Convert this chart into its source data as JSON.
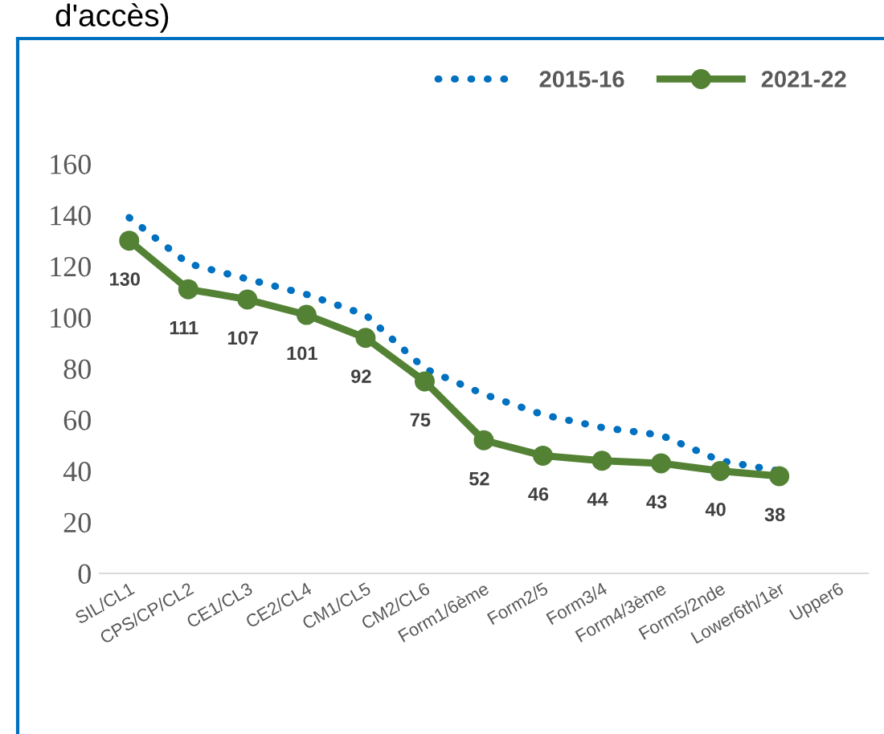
{
  "chart_data": {
    "type": "line",
    "title": "d'accès)",
    "categories": [
      "SIL/CL1",
      "CPS/CP/CL2",
      "CE1/CL3",
      "CE2/CL4",
      "CM1/CL5",
      "CM2/CL6",
      "Form1/6ème",
      "Form2/5",
      "Form3/4",
      "Form4/3ème",
      "Form5/2nde",
      "Lower6th/1èr",
      "Upper6"
    ],
    "series": [
      {
        "name": "2015-16",
        "color": "#0070c0",
        "line_style": "dotted",
        "marker": "none",
        "values": [
          139,
          121,
          115,
          109,
          101,
          80,
          70,
          62,
          57,
          54,
          44,
          40,
          null
        ]
      },
      {
        "name": "2021-22",
        "color": "#548235",
        "line_style": "solid",
        "marker": "circle",
        "values": [
          130,
          111,
          107,
          101,
          92,
          75,
          52,
          46,
          44,
          43,
          40,
          38,
          null
        ],
        "value_labels": [
          "130",
          "111",
          "107",
          "101",
          "92",
          "75",
          "52",
          "46",
          "44",
          "43",
          "40",
          "38",
          null
        ]
      }
    ],
    "ylim": [
      0,
      160
    ],
    "yticks": [
      0,
      20,
      40,
      60,
      80,
      100,
      120,
      140,
      160
    ],
    "grid": false,
    "legend": "top right"
  }
}
